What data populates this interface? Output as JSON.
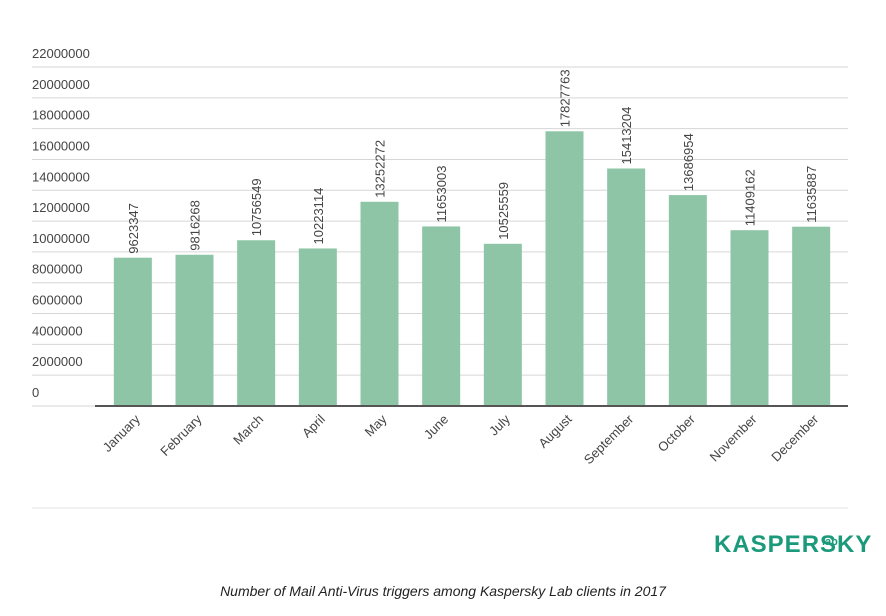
{
  "chart_data": {
    "type": "bar",
    "categories": [
      "January",
      "February",
      "March",
      "April",
      "May",
      "June",
      "July",
      "August",
      "September",
      "October",
      "November",
      "December"
    ],
    "values": [
      9623347,
      9816268,
      10756549,
      10223114,
      13252272,
      11653003,
      10525559,
      17827763,
      15413204,
      13686954,
      11409162,
      11635887
    ],
    "color": "#8dc5a6",
    "ylim": [
      0,
      22000000
    ],
    "yticks": [
      0,
      2000000,
      4000000,
      6000000,
      8000000,
      10000000,
      12000000,
      14000000,
      16000000,
      18000000,
      20000000,
      22000000
    ],
    "grid": true
  },
  "logo": {
    "name": "KASPERSKY",
    "suffix": "lab"
  },
  "caption": "Number of Mail Anti-Virus triggers among Kaspersky Lab clients in 2017"
}
